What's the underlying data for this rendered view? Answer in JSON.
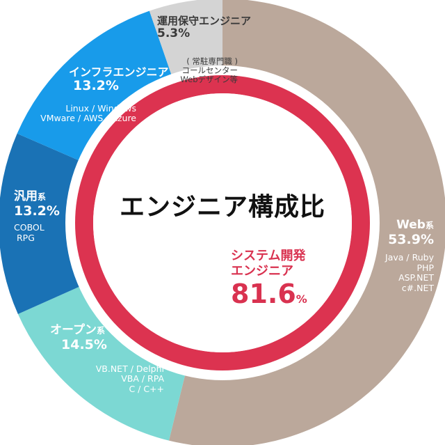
{
  "title": "エンジニア構成比",
  "colors": {
    "web": "#bba89b",
    "open": "#7cd8d3",
    "general": "#1a72b5",
    "infra": "#189bea",
    "ops": "#d4d4d4",
    "inner": "#dc3350"
  },
  "segments": [
    {
      "name": "Web",
      "suffix": "系",
      "pct": "53.9%",
      "details": [
        "Java / Ruby",
        "PHP",
        "ASP.NET",
        "c#.NET"
      ]
    },
    {
      "name": "オープン",
      "suffix": "系",
      "pct": "14.5%",
      "details": [
        "VB.NET / Delphi",
        "VBA / RPA",
        "C / C++"
      ]
    },
    {
      "name": "汎用",
      "suffix": "系",
      "pct": "13.2%",
      "details": [
        "COBOL",
        "RPG"
      ]
    },
    {
      "name": "インフラエンジニア",
      "suffix": "",
      "pct": "13.2%",
      "details": [
        "Linux / Windows",
        "VMware / AWS / Azure"
      ]
    },
    {
      "name": "運用保守エンジニア",
      "suffix": "",
      "pct": "5.3%",
      "details": [
        "( 常駐専門職 )",
        "コールセンター",
        "Webデザイン等"
      ]
    }
  ],
  "inner": {
    "label_line1": "システム開発",
    "label_line2": "エンジニア",
    "value": "81.6",
    "unit": "%"
  },
  "chart_data": {
    "type": "pie",
    "title": "エンジニア構成比",
    "outer_ring": {
      "categories": [
        "Web系",
        "オープン系",
        "汎用系",
        "インフラエンジニア",
        "運用保守エンジニア"
      ],
      "values": [
        53.9,
        14.5,
        13.2,
        13.2,
        5.3
      ]
    },
    "inner_ring": {
      "categories": [
        "システム開発エンジニア"
      ],
      "values": [
        81.6
      ]
    }
  }
}
